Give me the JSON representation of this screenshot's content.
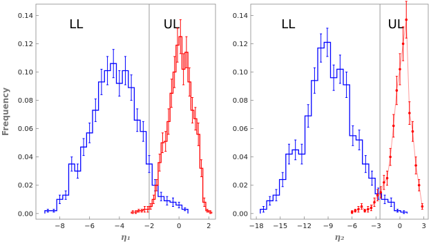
{
  "chart_data": [
    {
      "type": "histogram",
      "xlabel": "η₁",
      "ylabel": "Frequency",
      "xlim": [
        -9.6,
        2.45
      ],
      "ylim": [
        -0.004,
        0.148
      ],
      "xticks": [
        -8,
        -6,
        -4,
        -2,
        0,
        2
      ],
      "yticks": [
        0.0,
        0.02,
        0.04,
        0.06,
        0.08,
        0.1,
        0.12,
        0.14
      ],
      "vline": -2,
      "region_labels": [
        {
          "text": "LL",
          "x": -6.9,
          "y": 0.131
        },
        {
          "text": "UL",
          "x": -0.5,
          "y": 0.131
        }
      ],
      "series": [
        {
          "color": "#0000ff",
          "style": "step",
          "bins": [
            [
              -9.0,
              -8.6
            ],
            [
              -8.6,
              -8.2
            ],
            [
              -8.2,
              -7.8
            ],
            [
              -7.8,
              -7.4
            ],
            [
              -7.4,
              -7.0
            ],
            [
              -7.0,
              -6.6
            ],
            [
              -6.6,
              -6.2
            ],
            [
              -6.2,
              -5.8
            ],
            [
              -5.8,
              -5.4
            ],
            [
              -5.4,
              -5.0
            ],
            [
              -5.0,
              -4.6
            ],
            [
              -4.6,
              -4.2
            ],
            [
              -4.2,
              -3.8
            ],
            [
              -3.8,
              -3.4
            ],
            [
              -3.4,
              -3.0
            ],
            [
              -3.0,
              -2.6
            ],
            [
              -2.6,
              -2.2
            ],
            [
              -2.2,
              -1.8
            ],
            [
              -1.8,
              -1.4
            ],
            [
              -1.4,
              -1.0
            ],
            [
              -1.0,
              -0.6
            ],
            [
              -0.6,
              -0.2
            ],
            [
              -0.2,
              0.2
            ],
            [
              0.2,
              0.6
            ]
          ],
          "values": [
            0.002,
            0.002,
            0.01,
            0.013,
            0.035,
            0.03,
            0.047,
            0.057,
            0.073,
            0.093,
            0.101,
            0.106,
            0.092,
            0.101,
            0.089,
            0.066,
            0.058,
            0.035,
            0.02,
            0.012,
            0.009,
            0.008,
            0.006,
            0.003
          ],
          "errors": [
            0.001,
            0.001,
            0.003,
            0.003,
            0.005,
            0.005,
            0.006,
            0.007,
            0.008,
            0.009,
            0.01,
            0.01,
            0.009,
            0.01,
            0.009,
            0.008,
            0.007,
            0.006,
            0.004,
            0.003,
            0.003,
            0.003,
            0.002,
            0.001
          ]
        },
        {
          "color": "#ff0000",
          "style": "step",
          "bins": [
            [
              -3.2,
              -3.0
            ],
            [
              -3.0,
              -2.8
            ],
            [
              -2.8,
              -2.6
            ],
            [
              -2.6,
              -2.4
            ],
            [
              -2.4,
              -2.2
            ],
            [
              -2.2,
              -2.0
            ],
            [
              -2.0,
              -1.8
            ],
            [
              -1.8,
              -1.6
            ],
            [
              -1.6,
              -1.4
            ],
            [
              -1.4,
              -1.2
            ],
            [
              -1.2,
              -1.0
            ],
            [
              -1.0,
              -0.8
            ],
            [
              -0.8,
              -0.6
            ],
            [
              -0.6,
              -0.4
            ],
            [
              -0.4,
              -0.2
            ],
            [
              -0.2,
              0.0
            ],
            [
              0.0,
              0.2
            ],
            [
              0.2,
              0.4
            ],
            [
              0.4,
              0.6
            ],
            [
              0.6,
              0.8
            ],
            [
              0.8,
              1.0
            ],
            [
              1.0,
              1.2
            ],
            [
              1.2,
              1.4
            ],
            [
              1.4,
              1.6
            ],
            [
              1.6,
              1.8
            ],
            [
              1.8,
              2.0
            ],
            [
              2.0,
              2.2
            ]
          ],
          "values": [
            0.001,
            0.001,
            0.002,
            0.002,
            0.003,
            0.003,
            0.005,
            0.01,
            0.02,
            0.036,
            0.05,
            0.051,
            0.065,
            0.085,
            0.1,
            0.119,
            0.125,
            0.102,
            0.114,
            0.093,
            0.073,
            0.067,
            0.056,
            0.032,
            0.008,
            0.002,
            0.001
          ],
          "errors": [
            0.001,
            0.001,
            0.001,
            0.001,
            0.002,
            0.002,
            0.002,
            0.003,
            0.004,
            0.006,
            0.007,
            0.007,
            0.009,
            0.01,
            0.011,
            0.012,
            0.012,
            0.011,
            0.011,
            0.01,
            0.009,
            0.008,
            0.008,
            0.006,
            0.003,
            0.001,
            0.001
          ]
        }
      ]
    },
    {
      "type": "histogram",
      "xlabel": "η₂",
      "ylabel": "",
      "xlim": [
        -18.7,
        3.55
      ],
      "ylim": [
        -0.004,
        0.148
      ],
      "xticks": [
        -18,
        -15,
        -12,
        -9,
        -6,
        -3,
        0,
        3
      ],
      "yticks": [
        0.0,
        0.02,
        0.04,
        0.06,
        0.08,
        0.1,
        0.12,
        0.14
      ],
      "vline": -2.5,
      "region_labels": [
        {
          "text": "LL",
          "x": -14.0,
          "y": 0.131
        },
        {
          "text": "UL",
          "x": -0.5,
          "y": 0.131
        }
      ],
      "series": [
        {
          "color": "#0000ff",
          "style": "step",
          "bins": [
            [
              -17.5,
              -16.7
            ],
            [
              -16.7,
              -15.9
            ],
            [
              -15.9,
              -15.1
            ],
            [
              -15.1,
              -14.3
            ],
            [
              -14.3,
              -13.5
            ],
            [
              -13.5,
              -12.7
            ],
            [
              -12.7,
              -11.9
            ],
            [
              -11.9,
              -11.1
            ],
            [
              -11.1,
              -10.3
            ],
            [
              -10.3,
              -9.5
            ],
            [
              -9.5,
              -8.7
            ],
            [
              -8.7,
              -7.9
            ],
            [
              -7.9,
              -7.1
            ],
            [
              -7.1,
              -6.3
            ],
            [
              -6.3,
              -5.5
            ],
            [
              -5.5,
              -4.7
            ],
            [
              -4.7,
              -3.9
            ],
            [
              -3.9,
              -3.1
            ],
            [
              -3.1,
              -2.3
            ],
            [
              -2.3,
              -1.5
            ],
            [
              -1.5,
              -0.7
            ],
            [
              -0.7,
              0.1
            ],
            [
              0.1,
              0.9
            ]
          ],
          "values": [
            0.003,
            0.009,
            0.013,
            0.024,
            0.042,
            0.045,
            0.042,
            0.069,
            0.094,
            0.117,
            0.121,
            0.096,
            0.102,
            0.091,
            0.055,
            0.052,
            0.035,
            0.025,
            0.014,
            0.01,
            0.008,
            0.002,
            0.001
          ],
          "errors": [
            0.002,
            0.003,
            0.004,
            0.005,
            0.007,
            0.007,
            0.007,
            0.008,
            0.009,
            0.01,
            0.01,
            0.009,
            0.01,
            0.009,
            0.007,
            0.007,
            0.006,
            0.005,
            0.004,
            0.003,
            0.003,
            0.001,
            0.001
          ]
        },
        {
          "color": "#ff0000",
          "style": "markers",
          "x": [
            -6.0,
            -5.6,
            -5.2,
            -4.8,
            -4.4,
            -4.0,
            -3.6,
            -3.2,
            -2.8,
            -2.4,
            -2.0,
            -1.6,
            -1.2,
            -0.8,
            -0.4,
            0.0,
            0.4,
            0.8,
            1.2,
            1.6,
            2.0,
            2.4,
            2.8
          ],
          "values": [
            0.001,
            0.002,
            0.003,
            0.005,
            0.002,
            0.003,
            0.004,
            0.008,
            0.013,
            0.015,
            0.022,
            0.025,
            0.04,
            0.062,
            0.087,
            0.102,
            0.12,
            0.137,
            0.071,
            0.058,
            0.034,
            0.02,
            0.005
          ],
          "errors": [
            0.001,
            0.001,
            0.002,
            0.002,
            0.001,
            0.002,
            0.002,
            0.003,
            0.004,
            0.004,
            0.005,
            0.005,
            0.006,
            0.008,
            0.01,
            0.011,
            0.012,
            0.013,
            0.008,
            0.007,
            0.006,
            0.004,
            0.002
          ]
        }
      ]
    }
  ]
}
